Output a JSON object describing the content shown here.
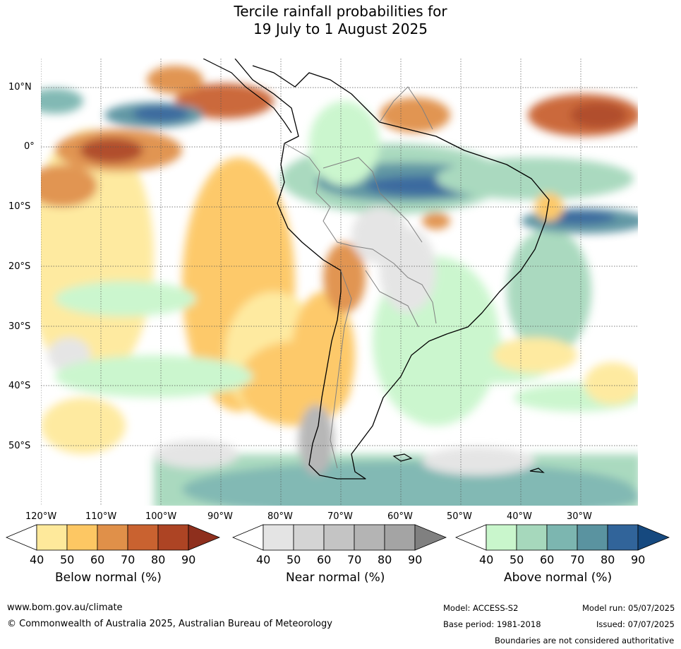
{
  "title_line1": "Tercile rainfall probabilities for",
  "title_line2": "19 July to 1 August 2025",
  "map": {
    "lat_labels": [
      "10°N",
      "0°",
      "10°S",
      "20°S",
      "30°S",
      "40°S",
      "50°S"
    ],
    "lon_labels": [
      "120°W",
      "110°W",
      "100°W",
      "90°W",
      "80°W",
      "70°W",
      "60°W",
      "50°W",
      "40°W",
      "30°W"
    ]
  },
  "colorbars": [
    {
      "title": "Below normal (%)",
      "ticks": [
        "40",
        "50",
        "60",
        "70",
        "80",
        "90"
      ],
      "colors": [
        "#ffffff",
        "#fee99b",
        "#fdc763",
        "#e09049",
        "#c96230",
        "#ad4424",
        "#8e2f1d"
      ]
    },
    {
      "title": "Near normal (%)",
      "ticks": [
        "40",
        "50",
        "60",
        "70",
        "80",
        "90"
      ],
      "colors": [
        "#ffffff",
        "#e4e4e4",
        "#d4d4d4",
        "#c4c4c4",
        "#b4b4b4",
        "#a4a4a4",
        "#808080"
      ]
    },
    {
      "title": "Above normal (%)",
      "ticks": [
        "40",
        "50",
        "60",
        "70",
        "80",
        "90"
      ],
      "colors": [
        "#ffffff",
        "#c9f6cc",
        "#a6d8bc",
        "#7cb6b0",
        "#5a93a0",
        "#31649a",
        "#16497f"
      ]
    }
  ],
  "footer": {
    "url": "www.bom.gov.au/climate",
    "copyright": "© Commonwealth of Australia 2025, Australian Bureau of Meteorology",
    "model": "Model: ACCESS-S2",
    "model_run": "Model run: 05/07/2025",
    "base_period": "Base period: 1981-2018",
    "issued": "Issued: 07/07/2025",
    "disclaimer": "Boundaries are not considered authoritative"
  }
}
